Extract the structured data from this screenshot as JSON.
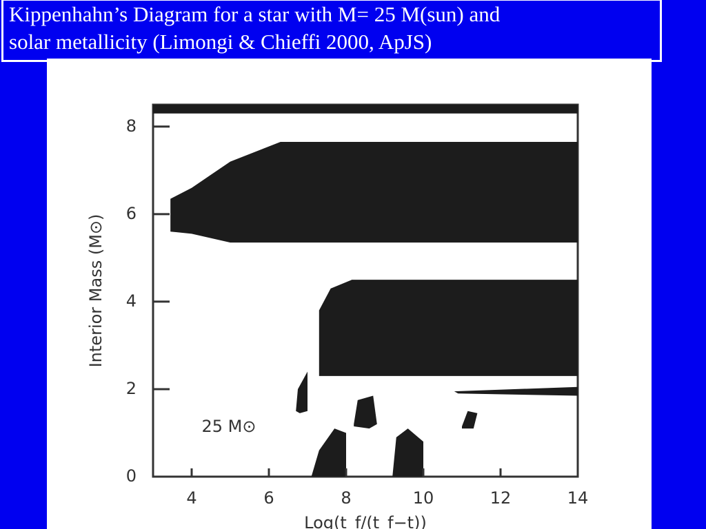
{
  "header": {
    "title_lines": [
      "Kippenhahn’s Diagram for a star with M= 25 M(sun) and",
      "solar metallicity (Limongi & Chieffi 2000, ApJS)"
    ]
  },
  "chart_data": {
    "type": "kippenhahn",
    "x_label": "Log(t_f/(t_f−t))",
    "y_label": "Interior Mass (M⊙)",
    "annotation": "25 M⊙",
    "xlim": [
      3,
      14
    ],
    "ylim": [
      0,
      8.5
    ],
    "xticks": [
      4,
      6,
      8,
      10,
      12,
      14
    ],
    "yticks": [
      0,
      2,
      4,
      6,
      8
    ],
    "color": "#1c1c1c",
    "regions": [
      {
        "x": [
          3,
          14,
          14,
          3
        ],
        "y": [
          8.5,
          8.5,
          8.3,
          8.3
        ]
      },
      {
        "x": [
          3.45,
          3.45,
          4.0,
          5.0,
          6.3,
          14,
          14,
          5.0,
          4.0,
          3.45
        ],
        "y": [
          5.6,
          6.35,
          6.6,
          7.2,
          7.65,
          7.65,
          5.35,
          5.35,
          5.55,
          5.6
        ]
      },
      {
        "x": [
          7.3,
          7.3,
          7.6,
          8.15,
          14,
          14
        ],
        "y": [
          2.3,
          3.8,
          4.3,
          4.5,
          4.5,
          2.3
        ]
      },
      {
        "x": [
          6.7,
          6.75,
          7.0,
          7.0,
          6.8
        ],
        "y": [
          1.5,
          2.0,
          2.4,
          1.5,
          1.45
        ]
      },
      {
        "x": [
          8.2,
          8.3,
          8.7,
          8.8,
          8.6,
          8.2
        ],
        "y": [
          1.2,
          1.75,
          1.85,
          1.2,
          1.1,
          1.15
        ]
      },
      {
        "x": [
          7.1,
          7.3,
          7.7,
          8.0,
          8.0,
          7.1
        ],
        "y": [
          0,
          0.6,
          1.1,
          1.0,
          0,
          0
        ]
      },
      {
        "x": [
          9.2,
          9.3,
          9.6,
          10.0,
          10.0,
          9.2
        ],
        "y": [
          0,
          0.9,
          1.1,
          0.8,
          0,
          0
        ]
      },
      {
        "x": [
          10.8,
          14,
          14,
          10.9
        ],
        "y": [
          1.95,
          2.05,
          1.85,
          1.9
        ]
      },
      {
        "x": [
          11.0,
          11.15,
          11.4,
          11.3,
          11.0
        ],
        "y": [
          1.15,
          1.5,
          1.45,
          1.1,
          1.1
        ]
      }
    ]
  }
}
